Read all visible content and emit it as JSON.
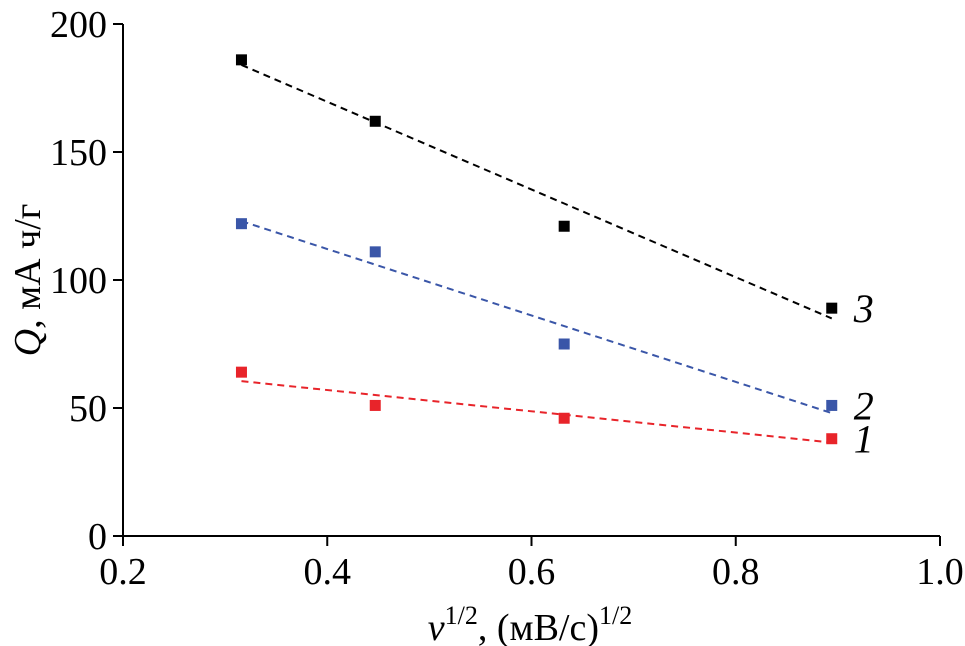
{
  "chart_data": {
    "type": "scatter",
    "xlabel_main": "v",
    "xlabel_sup": "1/2",
    "xlabel_rest": ", (мВ/с)",
    "xlabel_sup2": "1/2",
    "ylabel_main": "Q",
    "ylabel_rest": ", мА ч/г",
    "xlim": [
      0.2,
      1.0
    ],
    "ylim": [
      0,
      200
    ],
    "xticks": [
      "0.2",
      "0.4",
      "0.6",
      "0.8",
      "1.0"
    ],
    "yticks": [
      "0",
      "50",
      "100",
      "150",
      "200"
    ],
    "grid": false,
    "series": [
      {
        "name": "1",
        "color": "#e8242a",
        "x": [
          0.316,
          0.447,
          0.632,
          0.894
        ],
        "y": [
          64,
          51,
          46,
          38
        ],
        "trend": [
          60.5,
          36.5
        ]
      },
      {
        "name": "2",
        "color": "#3a56a8",
        "x": [
          0.316,
          0.447,
          0.632,
          0.894
        ],
        "y": [
          122,
          111,
          75,
          51
        ],
        "trend": [
          123,
          48
        ]
      },
      {
        "name": "3",
        "color": "#000000",
        "x": [
          0.316,
          0.447,
          0.632,
          0.894
        ],
        "y": [
          186,
          162,
          121,
          89
        ],
        "trend": [
          184,
          85
        ]
      }
    ]
  }
}
